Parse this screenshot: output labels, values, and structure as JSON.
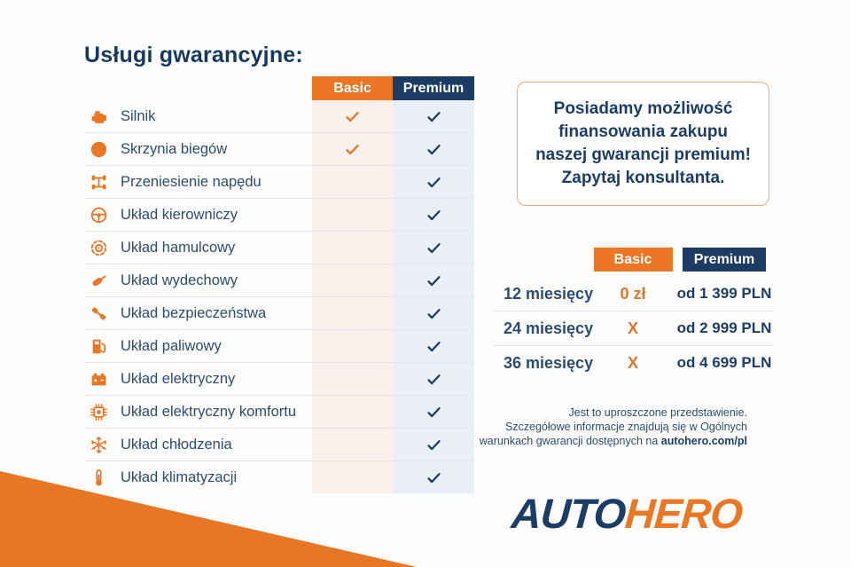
{
  "title": "Usługi gwarancyjne:",
  "colors": {
    "orange": "#EB7724",
    "navy": "#1C3C63",
    "text_navy": "#2B4D72",
    "basic_column_bg": "#FBF0EA",
    "premium_column_bg": "#EAEFF6",
    "promo_border": "#EDAC72"
  },
  "services_table": {
    "columns": [
      "Basic",
      "Premium"
    ],
    "check_symbol": "✓",
    "rows": [
      {
        "icon": "engine-icon",
        "label": "Silnik",
        "basic": true,
        "premium": true
      },
      {
        "icon": "gearbox-icon",
        "label": "Skrzynia biegów",
        "basic": true,
        "premium": true
      },
      {
        "icon": "drivetrain-icon",
        "label": "Przeniesienie napędu",
        "basic": false,
        "premium": true
      },
      {
        "icon": "steering-wheel-icon",
        "label": "Układ kierowniczy",
        "basic": false,
        "premium": true
      },
      {
        "icon": "brake-disc-icon",
        "label": "Układ hamulcowy",
        "basic": false,
        "premium": true
      },
      {
        "icon": "exhaust-icon",
        "label": "Układ wydechowy",
        "basic": false,
        "premium": true
      },
      {
        "icon": "seatbelt-icon",
        "label": "Układ bezpieczeństwa",
        "basic": false,
        "premium": true
      },
      {
        "icon": "fuel-pump-icon",
        "label": "Układ paliwowy",
        "basic": false,
        "premium": true
      },
      {
        "icon": "battery-icon",
        "label": "Układ elektryczny",
        "basic": false,
        "premium": true
      },
      {
        "icon": "chip-icon",
        "label": "Układ elektryczny komfortu",
        "basic": false,
        "premium": true
      },
      {
        "icon": "snowflake-icon",
        "label": "Układ chłodzenia",
        "basic": false,
        "premium": true
      },
      {
        "icon": "thermometer-icon",
        "label": "Układ klimatyzacji",
        "basic": false,
        "premium": true
      }
    ]
  },
  "promo": {
    "line1": "Posiadamy możliwość",
    "line2": "finansowania zakupu",
    "line3": "naszej gwarancji premium!",
    "line4": "Zapytaj konsultanta."
  },
  "pricing_table": {
    "columns": [
      "Basic",
      "Premium"
    ],
    "rows": [
      {
        "label": "12 miesięcy",
        "basic": "0 zł",
        "premium": "od 1 399 PLN"
      },
      {
        "label": "24 miesięcy",
        "basic": "X",
        "premium": "od 2 999 PLN"
      },
      {
        "label": "36 miesięcy",
        "basic": "X",
        "premium": "od 4 699 PLN"
      }
    ]
  },
  "disclaimer": {
    "line1": "Jest to uproszczone przedstawienie.",
    "line2": "Szczegółowe informacje znajdują się w Ogólnych",
    "line3_prefix": "warunkach gwarancji dostępnych na ",
    "link": "autohero.com/pl"
  },
  "logo": {
    "part1": "AUTO",
    "part2": "HERO"
  }
}
